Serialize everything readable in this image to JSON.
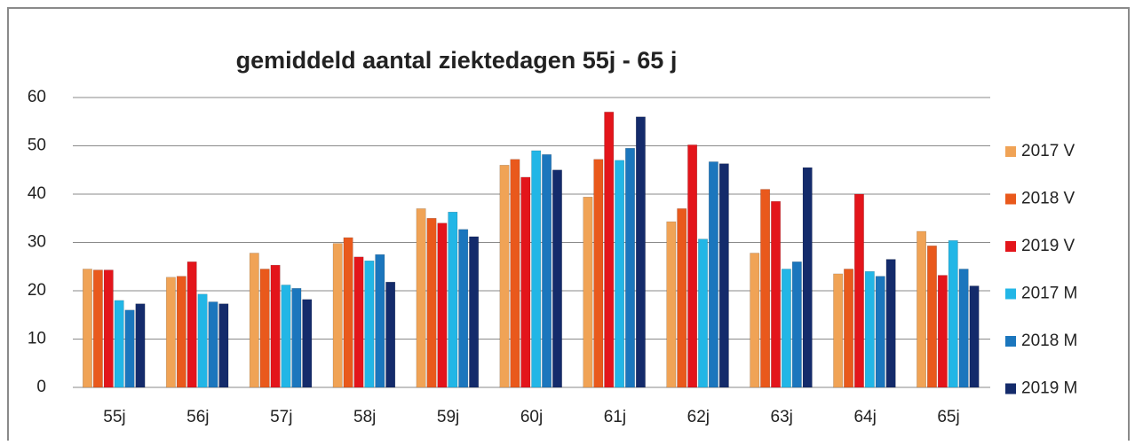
{
  "chart_data": {
    "type": "bar",
    "title": "gemiddeld aantal ziektedagen 55j - 65 j",
    "categories": [
      "55j",
      "56j",
      "57j",
      "58j",
      "59j",
      "60j",
      "61j",
      "62j",
      "63j",
      "64j",
      "65j"
    ],
    "series": [
      {
        "name": "2017 V",
        "color": "#f0a356",
        "values": [
          24.5,
          22.8,
          27.8,
          29.8,
          37,
          46,
          39.4,
          34.3,
          27.8,
          23.5,
          32.3
        ]
      },
      {
        "name": "2018 V",
        "color": "#e9591c",
        "values": [
          24.3,
          23,
          24.5,
          31,
          35,
          47.2,
          47.2,
          37,
          41,
          24.5,
          29.3
        ]
      },
      {
        "name": "2019 V",
        "color": "#e3151b",
        "values": [
          24.3,
          26,
          25.3,
          27,
          34,
          43.5,
          57,
          50.2,
          38.5,
          40,
          23.2
        ]
      },
      {
        "name": "2017 M",
        "color": "#22b6e6",
        "values": [
          18,
          19.3,
          21.2,
          26.2,
          36.3,
          49,
          47,
          30.7,
          24.5,
          24,
          30.4
        ]
      },
      {
        "name": "2018 M",
        "color": "#1b76bd",
        "values": [
          16,
          17.7,
          20.5,
          27.5,
          32.7,
          48.2,
          49.5,
          46.7,
          26,
          23,
          24.5
        ]
      },
      {
        "name": "2019 M",
        "color": "#142b6b",
        "values": [
          17.3,
          17.3,
          18.2,
          21.8,
          31.2,
          45,
          56,
          46.3,
          45.5,
          26.5,
          21
        ]
      }
    ],
    "ylim": [
      0,
      60
    ],
    "yticks": [
      0,
      10,
      20,
      30,
      40,
      50,
      60
    ],
    "grid": true,
    "legend": "right"
  }
}
